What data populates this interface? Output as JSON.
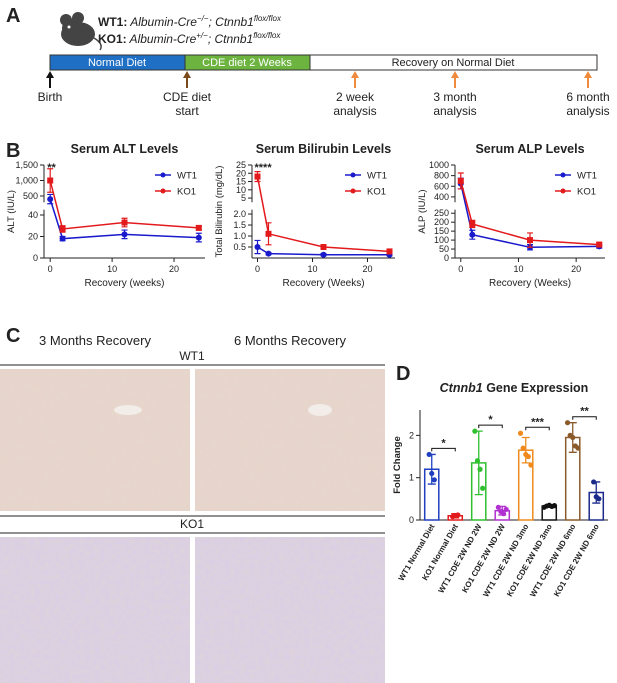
{
  "panel_labels": [
    "A",
    "B",
    "C",
    "D"
  ],
  "timeline": {
    "genotypes": [
      {
        "name": "WT1:",
        "gene1": " Albumin-Cre",
        "sup1": "−/−",
        "gene2": "; Ctnnb1",
        "sup2": "flox/flox"
      },
      {
        "name": "KO1:",
        "gene1": " Albumin-Cre",
        "sup1": "+/−",
        "gene2": "; Ctnnb1",
        "sup2": "flox/flox"
      }
    ],
    "phases": [
      "Normal Diet",
      "CDE diet 2 Weeks",
      "Recovery on Normal Diet"
    ],
    "events": [
      [
        "Birth"
      ],
      [
        "CDE diet",
        "start"
      ],
      [
        "2 week",
        "analysis"
      ],
      [
        "3 month",
        "analysis"
      ],
      [
        "6 month",
        "analysis"
      ]
    ]
  },
  "micrographs": {
    "columns": [
      "3 Months Recovery",
      "6 Months Recovery"
    ],
    "rows": [
      "WT1",
      "KO1"
    ]
  },
  "chart_data": [
    {
      "type": "line",
      "title": "Serum ALT Levels",
      "xlabel": "Recovery (weeks)",
      "ylabel": "ALT (IU/L)",
      "x": [
        0,
        2,
        12,
        24
      ],
      "xlim": [
        -1,
        25
      ],
      "xticks": [
        0,
        10,
        20
      ],
      "y_segments": [
        {
          "ylim": [
            0,
            45
          ],
          "yticks": [
            0,
            20,
            40
          ]
        },
        {
          "ylim": [
            300,
            1500
          ],
          "yticks": [
            500,
            {
              "value": 1000,
              "label": "1,000"
            },
            {
              "value": 1500,
              "label": "1,500"
            }
          ]
        }
      ],
      "series": [
        {
          "name": "WT1",
          "color": "#1a1acd",
          "values": [
            400,
            18,
            22,
            19
          ],
          "errors": [
            150,
            2,
            4,
            4
          ]
        },
        {
          "name": "KO1",
          "color": "#e31a1c",
          "values": [
            1000,
            27,
            33,
            28
          ],
          "errors": [
            380,
            3,
            4,
            2
          ]
        }
      ],
      "annotations": [
        "**"
      ],
      "legend": "upper right"
    },
    {
      "type": "line",
      "title": "Serum Bilirubin Levels",
      "xlabel": "Recovery (Weeks)",
      "ylabel": "Total Bilirubin (mg/dL)",
      "x": [
        0,
        2,
        12,
        24
      ],
      "xlim": [
        -1,
        25
      ],
      "xticks": [
        0,
        10,
        20
      ],
      "y_segments": [
        {
          "ylim": [
            0,
            2.2
          ],
          "yticks": [
            0.5,
            {
              "value": 1,
              "label": "1.0"
            },
            1.5,
            {
              "value": 2,
              "label": "2.0"
            }
          ]
        },
        {
          "ylim": [
            2.5,
            25
          ],
          "yticks": [
            5,
            10,
            15,
            20,
            25
          ]
        }
      ],
      "series": [
        {
          "name": "WT1",
          "color": "#1a1acd",
          "values": [
            0.5,
            0.2,
            0.15,
            0.15
          ],
          "errors": [
            0.3,
            0.05,
            0.05,
            0.05
          ]
        },
        {
          "name": "KO1",
          "color": "#e31a1c",
          "values": [
            18,
            1.1,
            0.5,
            0.3
          ],
          "errors": [
            3,
            0.5,
            0.1,
            0.1
          ]
        }
      ],
      "annotations": [
        "****"
      ],
      "legend": "upper right"
    },
    {
      "type": "line",
      "title": "Serum ALP Levels",
      "xlabel": "Recovery (Weeks)",
      "ylabel": "ALP (IU/L)",
      "x": [
        0,
        2,
        12,
        24
      ],
      "xlim": [
        -1,
        25
      ],
      "xticks": [
        0,
        10,
        20
      ],
      "y_segments": [
        {
          "ylim": [
            0,
            270
          ],
          "yticks": [
            0,
            50,
            100,
            150,
            200,
            250
          ]
        },
        {
          "ylim": [
            300,
            1000
          ],
          "yticks": [
            400,
            600,
            800,
            1000
          ]
        }
      ],
      "series": [
        {
          "name": "WT1",
          "color": "#1a1acd",
          "values": [
            650,
            130,
            60,
            65
          ],
          "errors": [
            100,
            25,
            15,
            10
          ]
        },
        {
          "name": "KO1",
          "color": "#e31a1c",
          "values": [
            700,
            190,
            100,
            75
          ],
          "errors": [
            150,
            20,
            40,
            10
          ]
        }
      ],
      "legend": "upper right"
    },
    {
      "type": "bar",
      "title_italic": "Ctnnb1",
      "title": " Gene Expression",
      "ylabel": "Fold Change",
      "categories": [
        "WT1 Normal Diet",
        "KO1 Normal Diet",
        "WT1 CDE 2W ND 2W",
        "KO1 CDE 2W ND 2W",
        "WT1 CDE 2W ND 3mo",
        "KO1 CDE 2W ND 3mo",
        "WT1 CDE 2W ND 6mo",
        "KO1 CDE 2W ND 6mo"
      ],
      "values": [
        1.2,
        0.1,
        1.35,
        0.22,
        1.65,
        0.33,
        1.95,
        0.65
      ],
      "errors": [
        0.35,
        0.05,
        0.75,
        0.1,
        0.3,
        0.03,
        0.35,
        0.25
      ],
      "colors": [
        "#1f3fbf",
        "#e31a1c",
        "#2fbf2f",
        "#b030d0",
        "#f08a1c",
        "#111111",
        "#8b5a2b",
        "#1a2a8a"
      ],
      "points": [
        [
          1.55,
          1.1,
          0.95
        ],
        [
          0.08,
          0.1,
          0.12
        ],
        [
          2.1,
          1.4,
          1.2,
          0.75
        ],
        [
          0.3,
          0.2,
          0.15,
          0.25
        ],
        [
          2.05,
          1.7,
          1.55,
          1.5,
          1.3
        ],
        [
          0.3,
          0.33,
          0.35,
          0.32,
          0.34
        ],
        [
          2.3,
          2.0,
          1.95,
          1.75,
          1.7
        ],
        [
          0.9,
          0.55,
          0.5
        ]
      ],
      "ylim": [
        0,
        2.6
      ],
      "yticks": [
        0,
        1,
        2
      ],
      "significance": [
        "*",
        "*",
        "***",
        "**"
      ]
    }
  ]
}
